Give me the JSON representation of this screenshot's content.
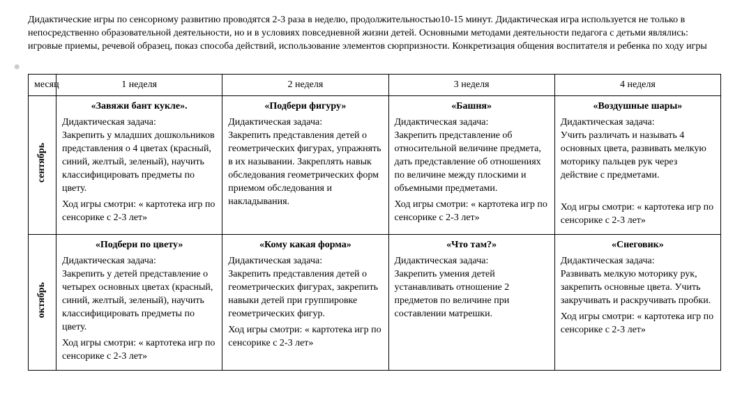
{
  "intro_text": "Дидактические игры по сенсорному развитию проводятся  2-3 раза в неделю, продолжительностью10-15 минут. Дидактическая игра используется не только в непосредственно образовательной деятельности, но и в условиях повседневной жизни детей. Основными методами деятельности педагога с детьми являлись: игровые приемы, речевой образец, показ способа действий, использование элементов сюрпризности. Конкретизация общения воспитателя и ребенка по ходу игры",
  "headers": {
    "month": "месяц",
    "week1": "1 неделя",
    "week2": "2 неделя",
    "week3": "3 неделя",
    "week4": "4 неделя"
  },
  "task_label": "Дидактическая задача:",
  "ref_text": "Ход  игры смотри: « картотека игр по сенсорике с 2-3 лет»",
  "rows": {
    "sep": {
      "month_label": "сентябрь",
      "c1": {
        "title": "«Завяжи бант кукле».",
        "body": "Закрепить у младших дошкольников представления о 4 цветах (красный, синий, желтый, зеленый), научить классифицировать предметы по цвету.",
        "has_ref": true
      },
      "c2": {
        "title": "«Подбери фигуру»",
        "body": "Закрепить представления детей о геометрических фигурах, упражнять в их назывании. Закреплять навык обследования геометрических форм приемом обследования и накладывания.",
        "has_ref": false
      },
      "c3": {
        "title": "«Башня»",
        "body": "Закрепить представление об относительной величине предмета, дать представление об отношениях по величине между плоскими и объемными предметами.",
        "has_ref": true
      },
      "c4": {
        "title": "«Воздушные шары»",
        "body": "Учить различать и называть  4 основных цвета, развивать мелкую моторику пальцев рук через действие с предметами.",
        "has_ref": true,
        "ref_break": true
      }
    },
    "oct": {
      "month_label": "октябрь",
      "c1": {
        "title": "«Подбери по цвету»",
        "body": "Закрепить у детей представление о четырех основных цветах (красный, синий, желтый, зеленый), научить классифицировать предметы по цвету.",
        "has_ref": true
      },
      "c2": {
        "title": "«Кому какая форма»",
        "body": "Закрепить представления детей о геометрических фигурах, закрепить навыки детей при группировке геометрических фигур.",
        "has_ref": true
      },
      "c3": {
        "title": "«Что там?»",
        "body": "Закрепить умения детей  устанавливать отношение 2 предметов по величине при составлении матрешки.",
        "has_ref": false
      },
      "c4": {
        "title": "«Снеговик»",
        "body": "Развивать мелкую моторику рук, закрепить основные цвета. Учить закручивать и раскручивать пробки.",
        "has_ref": true
      }
    }
  }
}
